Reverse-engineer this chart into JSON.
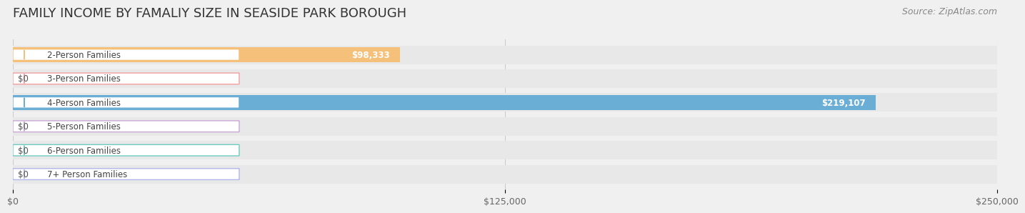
{
  "title": "FAMILY INCOME BY FAMALIY SIZE IN SEASIDE PARK BOROUGH",
  "source": "Source: ZipAtlas.com",
  "categories": [
    "2-Person Families",
    "3-Person Families",
    "4-Person Families",
    "5-Person Families",
    "6-Person Families",
    "7+ Person Families"
  ],
  "values": [
    98333,
    0,
    219107,
    0,
    0,
    0
  ],
  "bar_colors": [
    "#f5c07a",
    "#f4a0a0",
    "#6aaed6",
    "#c9a8d4",
    "#6eccc0",
    "#b0b8e8"
  ],
  "label_colors": [
    "#f5c07a",
    "#f4a0a0",
    "#6aaed6",
    "#c9a8d4",
    "#6eccc0",
    "#b0b8e8"
  ],
  "value_labels": [
    "$98,333",
    "$0",
    "$219,107",
    "$0",
    "$0",
    "$0"
  ],
  "xlim": [
    0,
    250000
  ],
  "xticks": [
    0,
    125000,
    250000
  ],
  "xtick_labels": [
    "$0",
    "$125,000",
    "$250,000"
  ],
  "background_color": "#f0f0f0",
  "bar_background_color": "#e8e8e8",
  "title_fontsize": 13,
  "source_fontsize": 9,
  "tick_fontsize": 9,
  "label_fontsize": 8.5,
  "value_fontsize": 8.5
}
